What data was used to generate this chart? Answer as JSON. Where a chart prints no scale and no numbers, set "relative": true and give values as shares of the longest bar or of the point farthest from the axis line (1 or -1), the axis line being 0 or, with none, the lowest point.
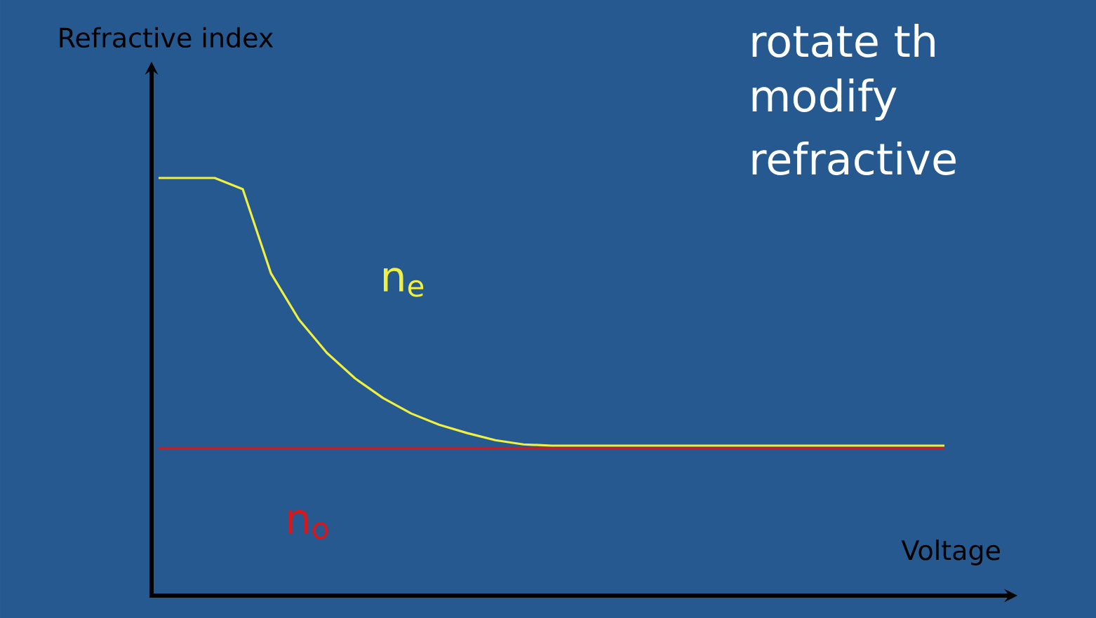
{
  "chart_data": {
    "type": "line",
    "relative": true,
    "xlabel": "Voltage",
    "ylabel": "Refractive index",
    "categories": [
      null,
      null,
      null,
      null,
      null,
      null,
      null,
      null,
      null,
      null,
      null,
      null,
      null,
      null,
      null,
      null,
      null,
      null,
      null,
      null,
      null,
      null,
      null,
      null,
      null,
      null,
      null,
      null,
      null
    ],
    "series": [
      {
        "name": "n$_{e}$",
        "color": "#f0f040",
        "values": [
          1,
          1,
          1,
          0.973,
          0.772,
          0.661,
          0.581,
          0.52,
          0.473,
          0.436,
          0.409,
          0.389,
          0.372,
          0.362,
          0.359,
          0.359,
          0.359,
          0.359,
          0.359,
          0.359,
          0.359,
          0.359,
          0.359,
          0.359,
          0.359,
          0.359,
          0.359,
          0.359,
          0.359
        ]
      },
      {
        "name": "n$_{o}$",
        "color": "#d81818",
        "values": [
          0.352,
          0.352,
          0.352,
          0.352,
          0.352,
          0.352,
          0.352,
          0.352,
          0.352,
          0.352,
          0.352,
          0.352,
          0.352,
          0.352,
          0.352,
          0.352,
          0.352,
          0.352,
          0.352,
          0.352,
          0.352,
          0.352,
          0.352,
          0.352,
          0.352,
          0.352,
          0.352,
          0.352,
          0.352
        ]
      }
    ],
    "annotations": [
      "rotate th",
      "modify",
      "refractive"
    ]
  }
}
